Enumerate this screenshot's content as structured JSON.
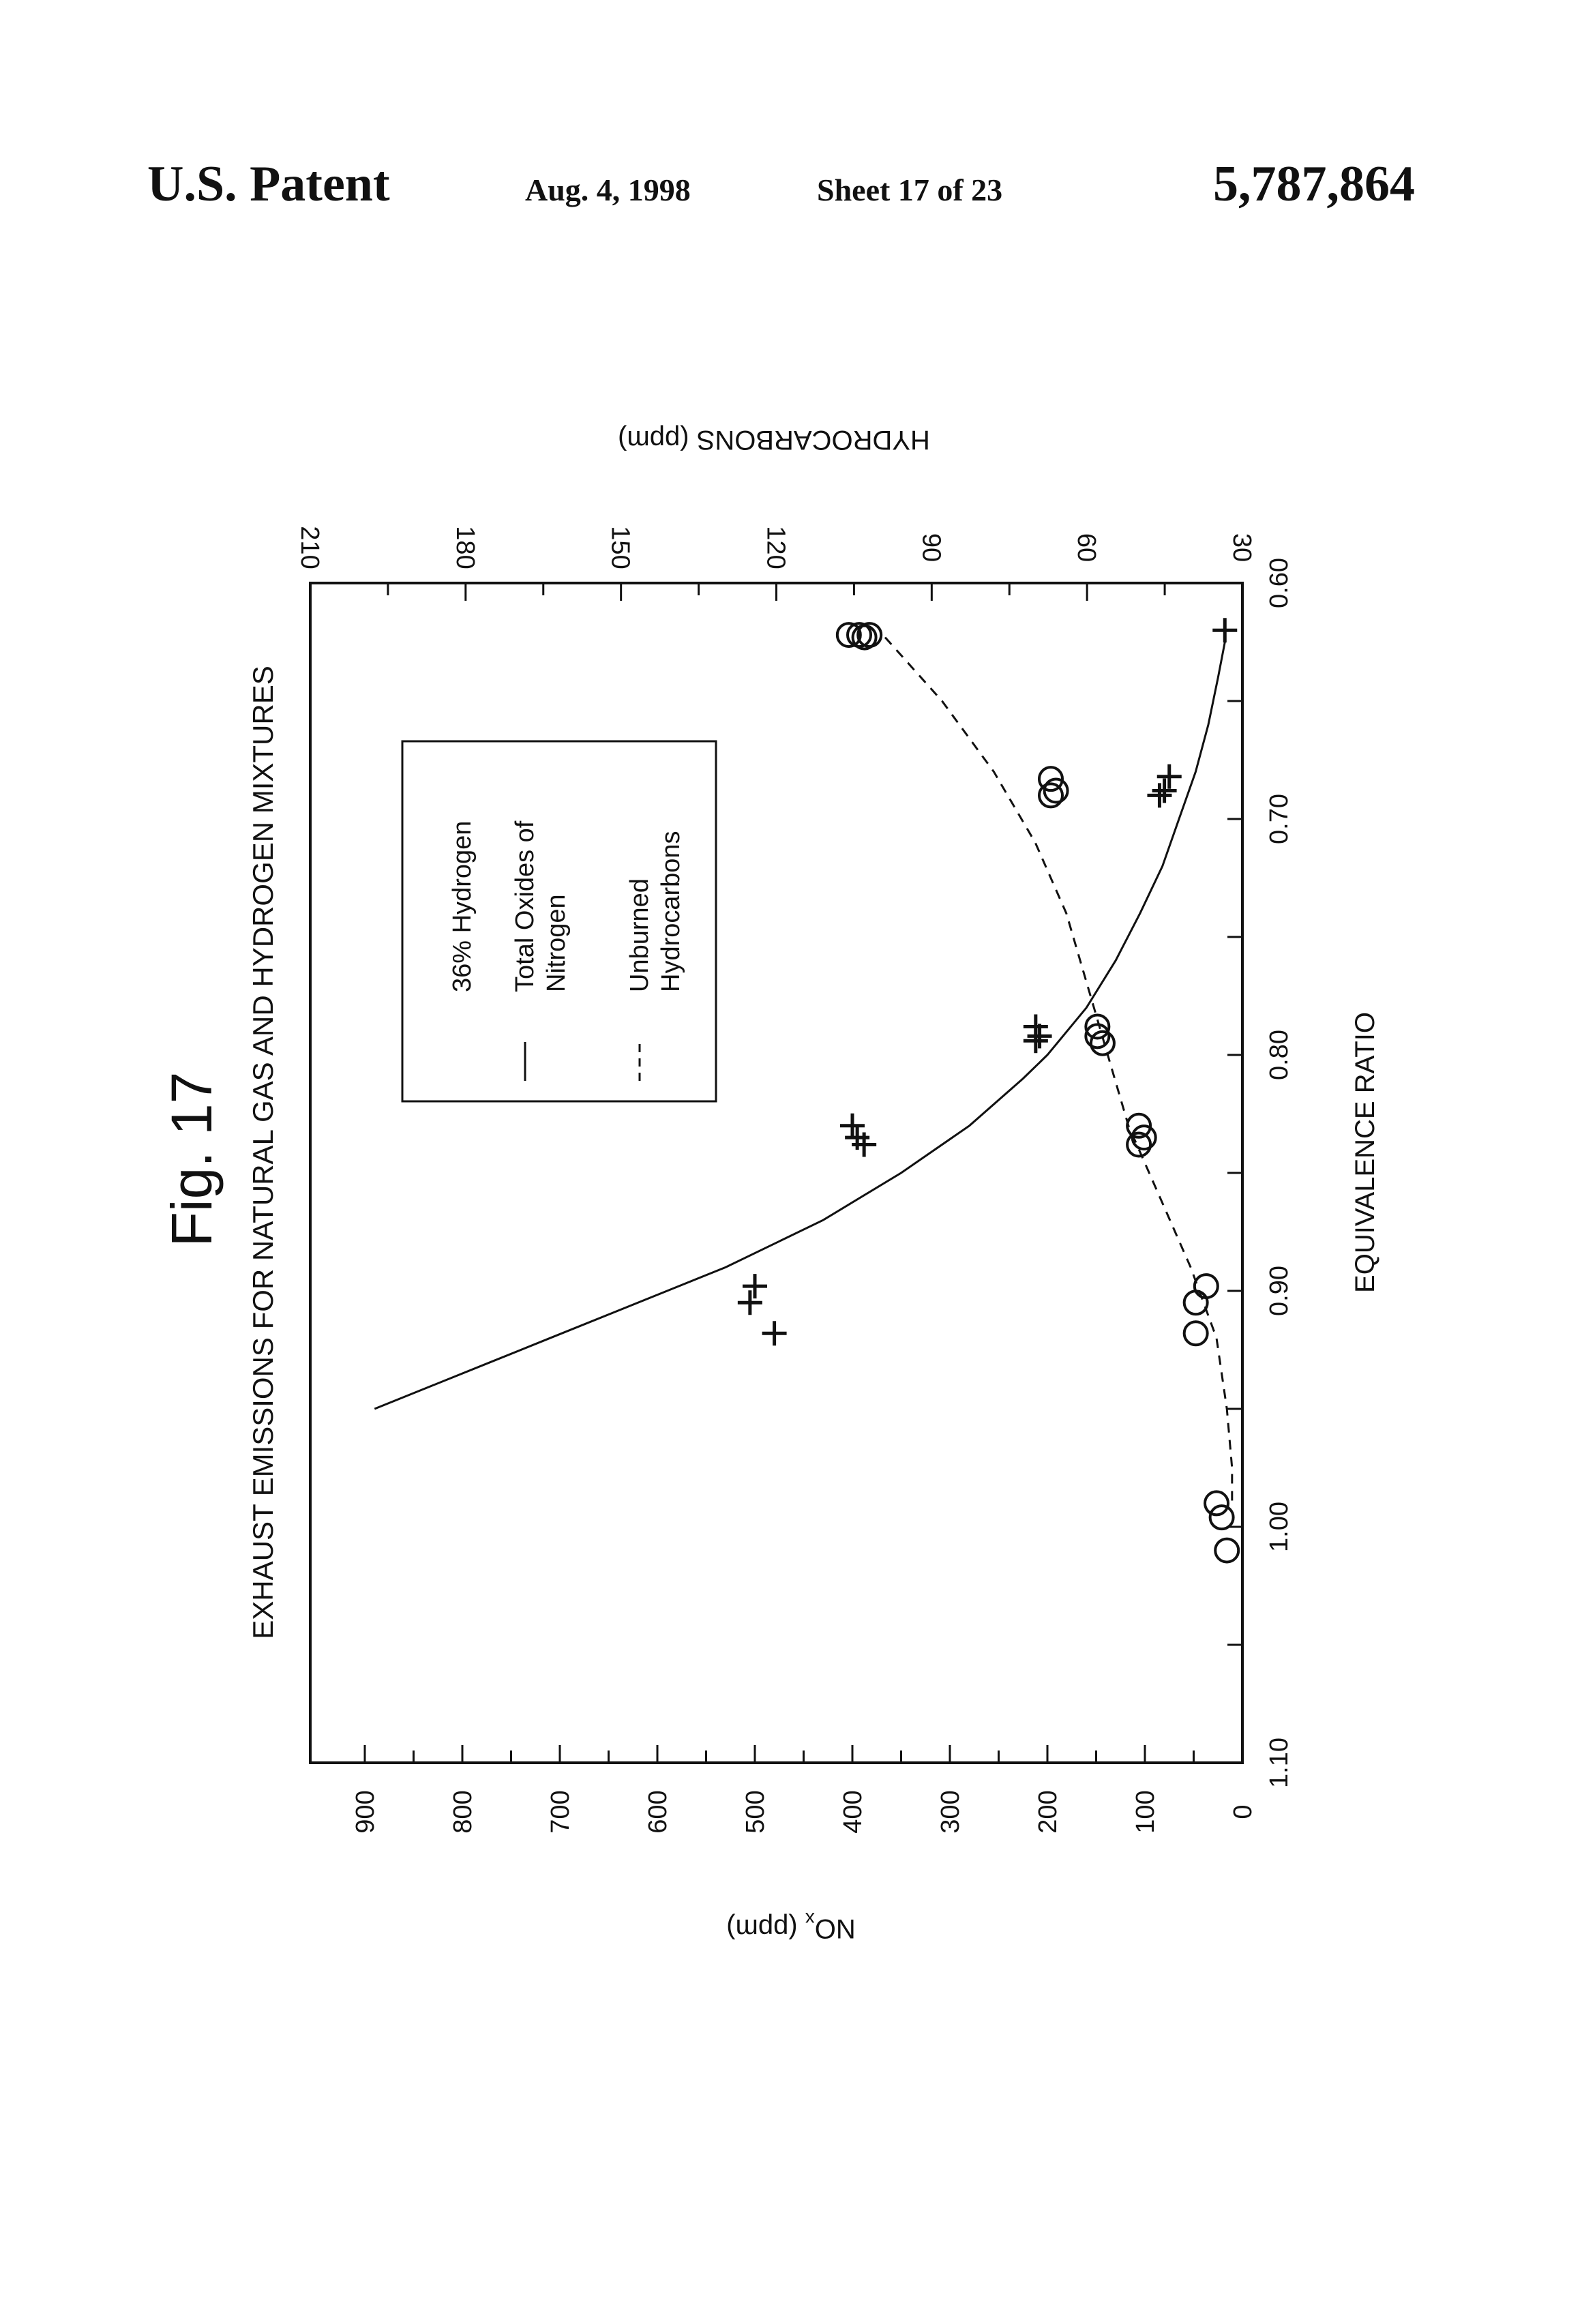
{
  "header": {
    "patent": "U.S. Patent",
    "date": "Aug. 4, 1998",
    "sheet": "Sheet 17 of 23",
    "number": "5,787,864"
  },
  "figure": {
    "label": "Fig. 17"
  },
  "chart_data": {
    "type": "scatter",
    "title": "EXHAUST EMISSIONS FOR NATURAL GAS AND HYDROGEN MIXTURES",
    "xlabel": "EQUIVALENCE RATIO",
    "ylabel": "NOx (ppm)",
    "y2label": "HYDROCARBONS (ppm)",
    "xlim": [
      1.1,
      0.6
    ],
    "ylim": [
      0,
      950
    ],
    "y2lim": [
      30,
      210
    ],
    "x_ticks": [
      "1.10",
      "1.00",
      "0.90",
      "0.80",
      "0.70",
      "0.60"
    ],
    "y_ticks": [
      "0",
      "100",
      "200",
      "300",
      "400",
      "500",
      "600",
      "700",
      "800",
      "900"
    ],
    "y2_ticks": [
      "30",
      "60",
      "90",
      "120",
      "150",
      "180",
      "210"
    ],
    "orientation": "rotated 90 degrees counter-clockwise on page",
    "grid": false,
    "legend": {
      "position": "upper-left (page upper-middle)",
      "title": "36% Hydrogen",
      "entries": [
        {
          "style": "solid",
          "line1": "Total Oxides of",
          "line2": "Nitrogen"
        },
        {
          "style": "dashed",
          "line1": "Unburned",
          "line2": "Hydrocarbons"
        }
      ]
    },
    "series": [
      {
        "name": "Total Oxides of Nitrogen",
        "axis": "left",
        "marker": "plus",
        "points": [
          {
            "x": 0.62,
            "y": 18
          },
          {
            "x": 0.682,
            "y": 75
          },
          {
            "x": 0.688,
            "y": 80
          },
          {
            "x": 0.69,
            "y": 85
          },
          {
            "x": 0.788,
            "y": 212
          },
          {
            "x": 0.792,
            "y": 208
          },
          {
            "x": 0.794,
            "y": 212
          },
          {
            "x": 0.83,
            "y": 400
          },
          {
            "x": 0.835,
            "y": 395
          },
          {
            "x": 0.838,
            "y": 388
          },
          {
            "x": 0.898,
            "y": 500
          },
          {
            "x": 0.905,
            "y": 505
          },
          {
            "x": 0.918,
            "y": 480
          }
        ]
      },
      {
        "name": "Total Oxides of Nitrogen fit",
        "axis": "left",
        "style": "solid",
        "points": [
          {
            "x": 0.95,
            "y": 890
          },
          {
            "x": 0.94,
            "y": 830
          },
          {
            "x": 0.93,
            "y": 770
          },
          {
            "x": 0.92,
            "y": 710
          },
          {
            "x": 0.91,
            "y": 650
          },
          {
            "x": 0.9,
            "y": 590
          },
          {
            "x": 0.89,
            "y": 530
          },
          {
            "x": 0.87,
            "y": 430
          },
          {
            "x": 0.85,
            "y": 350
          },
          {
            "x": 0.83,
            "y": 280
          },
          {
            "x": 0.81,
            "y": 225
          },
          {
            "x": 0.8,
            "y": 200
          },
          {
            "x": 0.78,
            "y": 160
          },
          {
            "x": 0.76,
            "y": 130
          },
          {
            "x": 0.74,
            "y": 105
          },
          {
            "x": 0.72,
            "y": 82
          },
          {
            "x": 0.7,
            "y": 65
          },
          {
            "x": 0.68,
            "y": 48
          },
          {
            "x": 0.66,
            "y": 35
          },
          {
            "x": 0.64,
            "y": 25
          },
          {
            "x": 0.625,
            "y": 18
          }
        ]
      },
      {
        "name": "Unburned Hydrocarbons",
        "axis": "right",
        "marker": "circle",
        "points": [
          {
            "x": 0.622,
            "y": 106
          },
          {
            "x": 0.622,
            "y": 104
          },
          {
            "x": 0.622,
            "y": 102
          },
          {
            "x": 0.623,
            "y": 103
          },
          {
            "x": 0.683,
            "y": 67
          },
          {
            "x": 0.688,
            "y": 66
          },
          {
            "x": 0.69,
            "y": 67
          },
          {
            "x": 0.788,
            "y": 58
          },
          {
            "x": 0.792,
            "y": 58
          },
          {
            "x": 0.795,
            "y": 57
          },
          {
            "x": 0.83,
            "y": 50
          },
          {
            "x": 0.835,
            "y": 49
          },
          {
            "x": 0.838,
            "y": 50
          },
          {
            "x": 0.898,
            "y": 37
          },
          {
            "x": 0.905,
            "y": 39
          },
          {
            "x": 0.918,
            "y": 39
          },
          {
            "x": 0.99,
            "y": 35
          },
          {
            "x": 0.996,
            "y": 34
          },
          {
            "x": 1.01,
            "y": 33
          }
        ]
      },
      {
        "name": "Unburned Hydrocarbons fit",
        "axis": "right",
        "style": "dashed",
        "points": [
          {
            "x": 0.623,
            "y": 99
          },
          {
            "x": 0.65,
            "y": 88
          },
          {
            "x": 0.68,
            "y": 78
          },
          {
            "x": 0.71,
            "y": 70
          },
          {
            "x": 0.74,
            "y": 64
          },
          {
            "x": 0.77,
            "y": 60
          },
          {
            "x": 0.8,
            "y": 56
          },
          {
            "x": 0.83,
            "y": 52
          },
          {
            "x": 0.86,
            "y": 46
          },
          {
            "x": 0.89,
            "y": 40
          },
          {
            "x": 0.92,
            "y": 35
          },
          {
            "x": 0.95,
            "y": 33
          },
          {
            "x": 0.975,
            "y": 32
          },
          {
            "x": 0.992,
            "y": 32
          }
        ]
      }
    ]
  }
}
